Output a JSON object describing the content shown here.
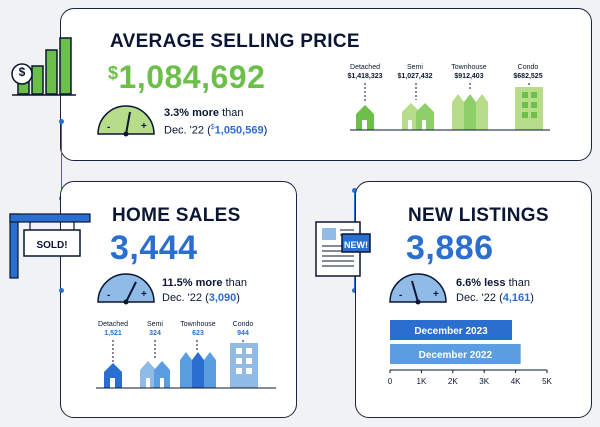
{
  "colors": {
    "green": "#6cc04a",
    "blue": "#2a6fd0",
    "navy": "#0a1633",
    "lightgreen": "#b7dc8a",
    "lightblue": "#8fbbe6"
  },
  "avg": {
    "title": "AVERAGE SELLING PRICE",
    "dollar": "$",
    "value": "1,084,692",
    "pct": "3.3% more",
    "than": " than",
    "prev_label": "Dec. '22 (",
    "prev_sup": "$",
    "prev_value": "1,050,569",
    "prev_close": ")",
    "gauge_minus": "-",
    "gauge_plus": "+",
    "types": [
      {
        "name": "Detached",
        "value": "$1,418,323"
      },
      {
        "name": "Semi",
        "value": "$1,027,432"
      },
      {
        "name": "Townhouse",
        "value": "$912,403"
      },
      {
        "name": "Condo",
        "value": "$682,525"
      }
    ]
  },
  "sales": {
    "title": "HOME SALES",
    "value": "3,444",
    "pct": "11.5% more",
    "than": " than",
    "prev_label": "Dec. '22 (",
    "prev_value": "3,090",
    "prev_close": ")",
    "sign_text": "SOLD!",
    "gauge_minus": "-",
    "gauge_plus": "+",
    "types": [
      {
        "name": "Detached",
        "value": "1,521"
      },
      {
        "name": "Semi",
        "value": "324"
      },
      {
        "name": "Townhouse",
        "value": "623"
      },
      {
        "name": "Condo",
        "value": "944"
      }
    ]
  },
  "listings": {
    "title": "NEW LISTINGS",
    "value": "3,886",
    "pct": "6.6% less",
    "than": " than",
    "prev_label": "Dec. '22 (",
    "prev_value": "4,161",
    "prev_close": ")",
    "badge_text": "NEW!",
    "gauge_minus": "-",
    "gauge_plus": "+"
  },
  "chart_data": {
    "type": "bar",
    "orientation": "horizontal",
    "categories": [
      "December 2023",
      "December 2022"
    ],
    "values": [
      3886,
      4161
    ],
    "xlim": [
      0,
      5000
    ],
    "xticks": [
      "0",
      "1K",
      "2K",
      "3K",
      "4K",
      "5K"
    ],
    "tick_values": [
      0,
      1000,
      2000,
      3000,
      4000,
      5000
    ],
    "bar_colors": [
      "#2a6fd0",
      "#5a9de0"
    ]
  }
}
